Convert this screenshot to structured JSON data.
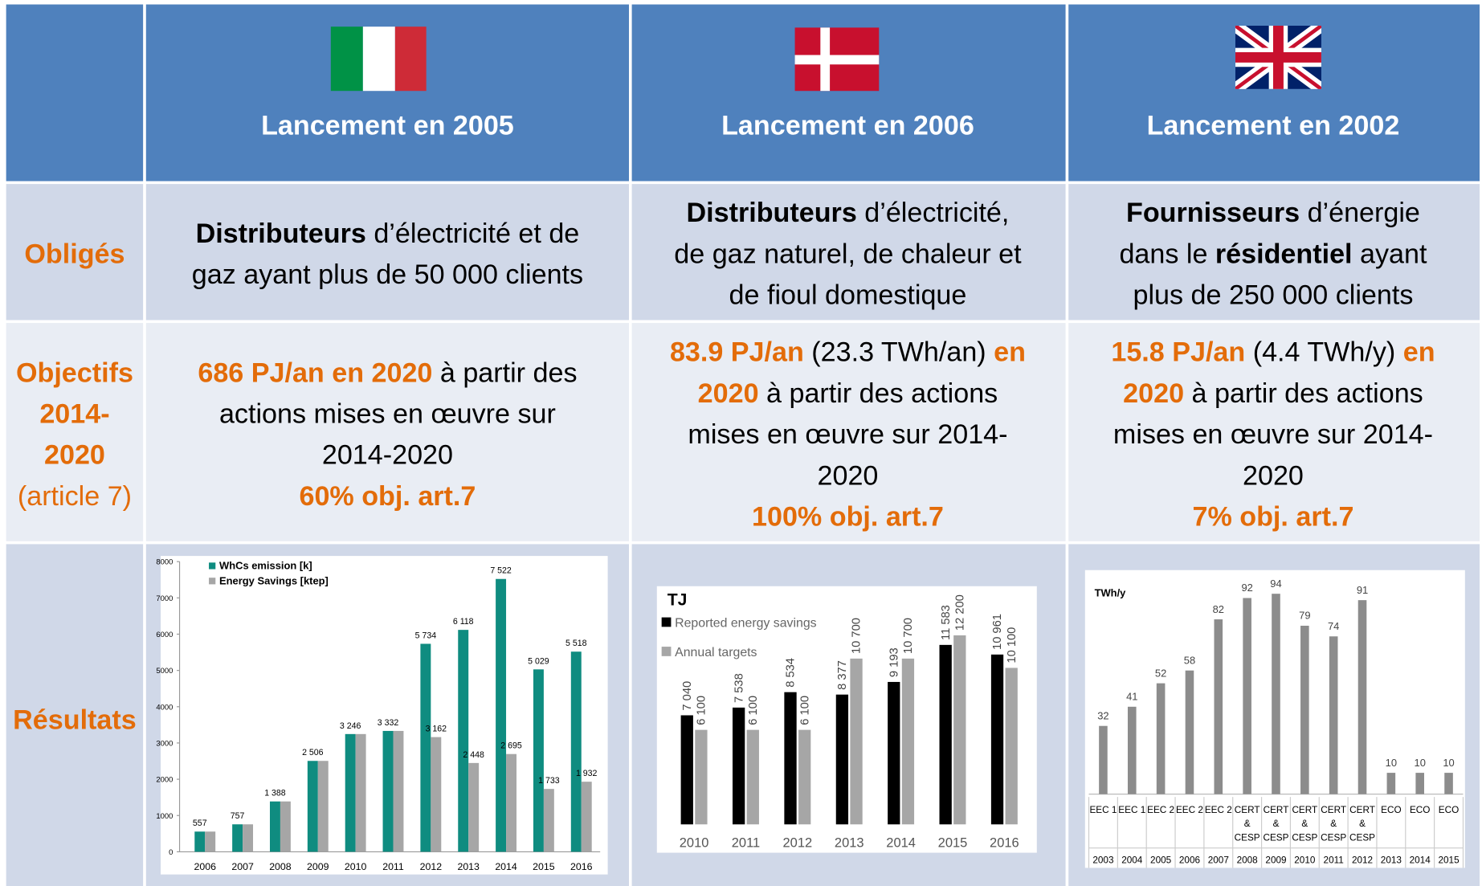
{
  "header": {
    "titles": [
      "Lancement en 2005",
      "Lancement en 2006",
      "Lancement en 2002"
    ]
  },
  "table": {
    "rows": [
      {
        "label": [
          [
            {
              "text": "Obligés",
              "style": "accent"
            }
          ]
        ],
        "cells": [
          [
            [
              {
                "text": "Distributeurs",
                "style": "bold"
              },
              {
                "text": " d’électricité et de",
                "style": "plain"
              }
            ],
            [
              {
                "text": "gaz ayant plus de 50 000 clients",
                "style": "plain"
              }
            ]
          ],
          [
            [
              {
                "text": "Distributeurs",
                "style": "bold"
              },
              {
                "text": " d’électricité,",
                "style": "plain"
              }
            ],
            [
              {
                "text": "de gaz naturel, de chaleur et",
                "style": "plain"
              }
            ],
            [
              {
                "text": "de fioul domestique",
                "style": "plain"
              }
            ]
          ],
          [
            [
              {
                "text": "Fournisseurs",
                "style": "bold"
              },
              {
                "text": " d’énergie",
                "style": "plain"
              }
            ],
            [
              {
                "text": "dans le ",
                "style": "plain"
              },
              {
                "text": "résidentiel",
                "style": "bold"
              },
              {
                "text": " ayant",
                "style": "plain"
              }
            ],
            [
              {
                "text": "plus de 250 000 clients",
                "style": "plain"
              }
            ]
          ]
        ]
      },
      {
        "label": [
          [
            {
              "text": "Objectifs",
              "style": "accent"
            }
          ],
          [
            {
              "text": "2014-",
              "style": "accent"
            }
          ],
          [
            {
              "text": "2020",
              "style": "accent"
            }
          ],
          [
            {
              "text": "(article 7)",
              "style": "accent-light"
            }
          ]
        ],
        "cells": [
          [
            [
              {
                "text": "686 PJ/an en 2020",
                "style": "accent"
              },
              {
                "text": " à partir des",
                "style": "plain"
              }
            ],
            [
              {
                "text": "actions mises en œuvre sur",
                "style": "plain"
              }
            ],
            [
              {
                "text": "2014-2020",
                "style": "plain"
              }
            ],
            [
              {
                "text": "60% obj. art.7",
                "style": "accent"
              }
            ]
          ],
          [
            [
              {
                "text": "83.9 PJ/an",
                "style": "accent"
              },
              {
                "text": " (23.3 TWh/an) ",
                "style": "plain"
              },
              {
                "text": "en",
                "style": "accent"
              }
            ],
            [
              {
                "text": "2020",
                "style": "accent"
              },
              {
                "text": " à partir des actions",
                "style": "plain"
              }
            ],
            [
              {
                "text": "mises en œuvre sur 2014-",
                "style": "plain"
              }
            ],
            [
              {
                "text": "2020",
                "style": "plain"
              }
            ],
            [
              {
                "text": "100% obj. art.7",
                "style": "accent"
              }
            ]
          ],
          [
            [
              {
                "text": "15.8 PJ/an",
                "style": "accent"
              },
              {
                "text": " (4.4 TWh/y) ",
                "style": "plain"
              },
              {
                "text": "en",
                "style": "accent"
              }
            ],
            [
              {
                "text": "2020",
                "style": "accent"
              },
              {
                "text": " à partir des actions",
                "style": "plain"
              }
            ],
            [
              {
                "text": "mises en œuvre sur 2014-",
                "style": "plain"
              }
            ],
            [
              {
                "text": "2020",
                "style": "plain"
              }
            ],
            [
              {
                "text": "7% obj. art.7",
                "style": "accent"
              }
            ]
          ]
        ]
      },
      {
        "label": [
          [
            {
              "text": "Résultats",
              "style": "accent"
            }
          ]
        ],
        "cells": []
      }
    ]
  },
  "chart_data": [
    {
      "type": "bar",
      "categories": [
        "2006",
        "2007",
        "2008",
        "2009",
        "2010",
        "2011",
        "2012",
        "2013",
        "2014",
        "2015",
        "2016"
      ],
      "series": [
        {
          "name": "WhCs emission [k]",
          "color": "#0f8c80",
          "values": [
            557,
            757,
            1388,
            2506,
            3246,
            3332,
            5734,
            6118,
            7522,
            5029,
            5518
          ],
          "value_labels": [
            "557",
            "757",
            "1 388",
            "2 506",
            "3 246",
            "3 332",
            "5 734",
            "6 118",
            "7 522",
            "5 029",
            "5 518"
          ]
        },
        {
          "name": "Energy Savings [ktep]",
          "color": "#a6a6a6",
          "values": [
            557,
            757,
            1388,
            2506,
            3246,
            3332,
            3162,
            2448,
            2695,
            1733,
            1932
          ],
          "value_labels": [
            null,
            null,
            null,
            null,
            null,
            null,
            "3 162",
            "2 448",
            "2 695",
            "1 733",
            "1 932"
          ]
        }
      ],
      "ylim": [
        0,
        8000
      ],
      "yticks": [
        0,
        1000,
        2000,
        3000,
        4000,
        5000,
        6000,
        7000,
        8000
      ],
      "legend": "top-left"
    },
    {
      "type": "bar",
      "title": "TJ",
      "categories": [
        "2010",
        "2011",
        "2012",
        "2013",
        "2014",
        "2015",
        "2016"
      ],
      "series": [
        {
          "name": "Reported energy savings",
          "color": "#000000",
          "values": [
            7040,
            7538,
            8534,
            8377,
            9193,
            11583,
            10961
          ],
          "value_labels": [
            "7 040",
            "7 538",
            "8 534",
            "8 377",
            "9 193",
            "11 583",
            "10 961"
          ]
        },
        {
          "name": "Annual targets",
          "color": "#a6a6a6",
          "values": [
            6100,
            6100,
            6100,
            10700,
            10700,
            12200,
            10100
          ],
          "value_labels": [
            "6 100",
            "6 100",
            "6 100",
            "10 700",
            "10 700",
            "12 200",
            "10 100"
          ]
        }
      ],
      "legend": "top-left"
    },
    {
      "type": "bar",
      "title": "TWh/y",
      "categories": [
        [
          "EEC 1"
        ],
        [
          "EEC 1"
        ],
        [
          "EEC 2"
        ],
        [
          "EEC 2"
        ],
        [
          "EEC 2"
        ],
        [
          "CERT",
          "&",
          "CESP"
        ],
        [
          "CERT",
          "&",
          "CESP"
        ],
        [
          "CERT",
          "&",
          "CESP"
        ],
        [
          "CERT",
          "&",
          "CESP"
        ],
        [
          "CERT",
          "&",
          "CESP"
        ],
        [
          "ECO"
        ],
        [
          "ECO"
        ],
        [
          "ECO"
        ]
      ],
      "years": [
        "2003",
        "2004",
        "2005",
        "2006",
        "2007",
        "2008",
        "2009",
        "2010",
        "2011",
        "2012",
        "2013",
        "2014",
        "2015"
      ],
      "values": [
        32,
        41,
        52,
        58,
        82,
        92,
        94,
        79,
        74,
        91,
        10,
        10,
        10
      ],
      "color": "#8c8c8c"
    }
  ]
}
